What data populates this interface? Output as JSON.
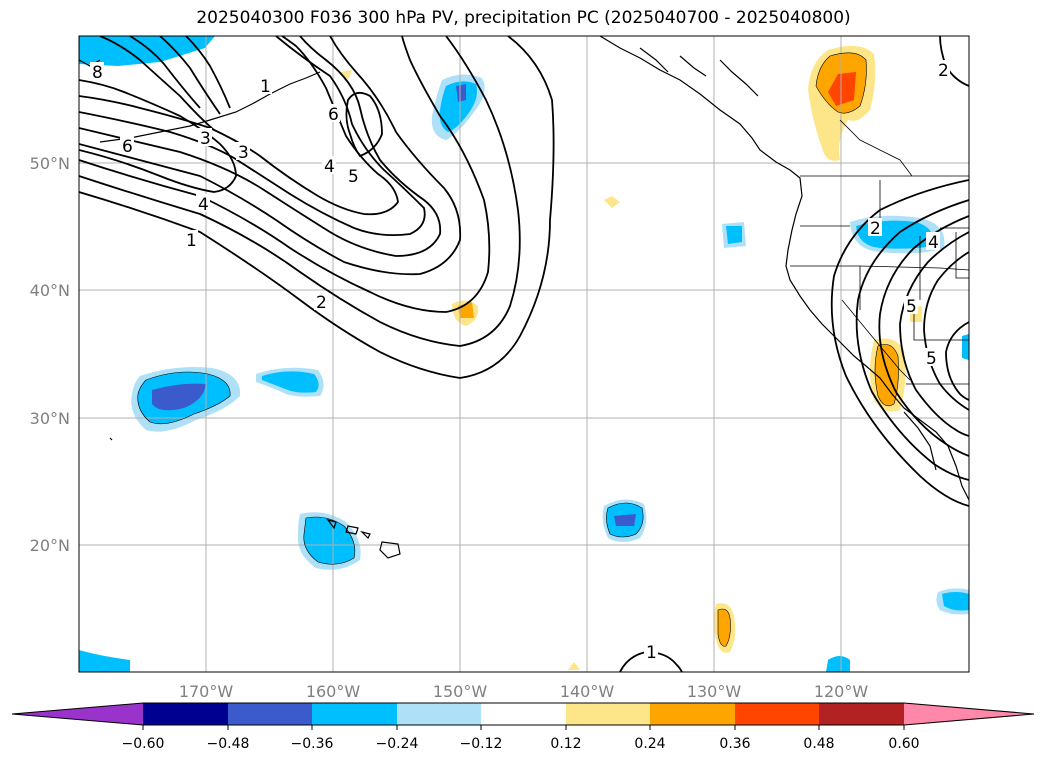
{
  "title": "2025040300 F036 300 hPa PV, precipitation PC (2025040700 - 2025040800)",
  "map": {
    "lon_range": [
      -180,
      -110
    ],
    "lat_range": [
      10,
      60
    ],
    "lon_ticks": [
      {
        "value": -170,
        "label": "170°W"
      },
      {
        "value": -160,
        "label": "160°W"
      },
      {
        "value": -150,
        "label": "150°W"
      },
      {
        "value": -140,
        "label": "140°W"
      },
      {
        "value": -130,
        "label": "130°W"
      },
      {
        "value": -120,
        "label": "120°W"
      }
    ],
    "lat_ticks": [
      {
        "value": 50,
        "label": "50°N"
      },
      {
        "value": 40,
        "label": "40°N"
      },
      {
        "value": 30,
        "label": "30°N"
      },
      {
        "value": 20,
        "label": "20°N"
      }
    ],
    "contour_labels": [
      "8",
      "6",
      "3",
      "1",
      "6",
      "3",
      "4",
      "5",
      "4",
      "1",
      "2",
      "2",
      "5",
      "4",
      "5",
      "1",
      "2"
    ]
  },
  "colorbar": {
    "levels": [
      "−0.60",
      "−0.48",
      "−0.36",
      "−0.24",
      "−0.12",
      "0.12",
      "0.24",
      "0.36",
      "0.48",
      "0.60"
    ],
    "colors": [
      "#9933cc",
      "#000090",
      "#3b5bcc",
      "#00bfff",
      "#aee0f8",
      "#ffffff",
      "#fde68a",
      "#ffa500",
      "#ff4500",
      "#b22222",
      "#ff88aa"
    ]
  }
}
